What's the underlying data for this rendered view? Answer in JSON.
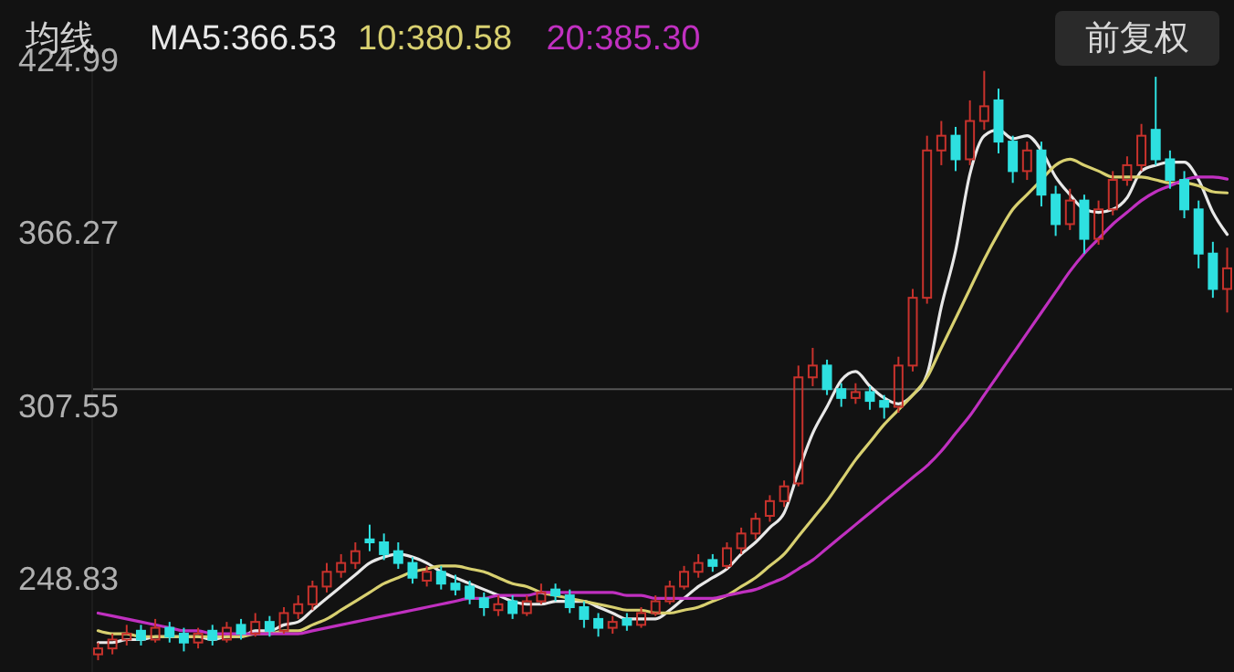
{
  "chart_data": {
    "type": "candlestick",
    "title": "均线",
    "legend": "top left",
    "ylim": [
      218,
      424.99
    ],
    "yticks": [
      248.83,
      307.55,
      366.27,
      424.99
    ],
    "categories": [
      null,
      null,
      null,
      null,
      null,
      null,
      null,
      null,
      null,
      null,
      null,
      null,
      null,
      null,
      null,
      null,
      null,
      null,
      null,
      null,
      null,
      null,
      null,
      null,
      null,
      null,
      null,
      null,
      null,
      null,
      null,
      null,
      null,
      null,
      null,
      null,
      null,
      null,
      null,
      null,
      null,
      null,
      null,
      null,
      null,
      null,
      null,
      null,
      null,
      null,
      null,
      null,
      null,
      null,
      null,
      null,
      null,
      null,
      null,
      null,
      null,
      null,
      null,
      null,
      null,
      null,
      null,
      null,
      null,
      null,
      null,
      null,
      null,
      null,
      null,
      null,
      null,
      null,
      null,
      null
    ],
    "ohlc": [
      [
        224,
        228,
        222,
        226
      ],
      [
        226,
        231,
        224,
        229
      ],
      [
        229,
        234,
        227,
        231
      ],
      [
        232,
        234,
        227,
        229
      ],
      [
        229,
        236,
        228,
        233
      ],
      [
        233,
        235,
        228,
        230
      ],
      [
        231,
        233,
        225,
        228
      ],
      [
        228,
        233,
        226,
        231
      ],
      [
        232,
        234,
        227,
        229
      ],
      [
        229,
        235,
        228,
        233
      ],
      [
        234,
        236,
        229,
        231
      ],
      [
        231,
        238,
        230,
        235
      ],
      [
        235,
        237,
        230,
        232
      ],
      [
        232,
        240,
        231,
        238
      ],
      [
        238,
        244,
        236,
        241
      ],
      [
        241,
        249,
        239,
        247
      ],
      [
        247,
        255,
        245,
        252
      ],
      [
        252,
        258,
        250,
        255
      ],
      [
        255,
        262,
        253,
        259
      ],
      [
        263,
        268,
        259,
        262
      ],
      [
        262,
        265,
        256,
        258
      ],
      [
        259,
        262,
        253,
        255
      ],
      [
        255,
        257,
        248,
        250
      ],
      [
        249,
        254,
        247,
        252
      ],
      [
        252,
        254,
        246,
        248
      ],
      [
        248,
        251,
        244,
        246
      ],
      [
        247,
        249,
        241,
        243
      ],
      [
        243,
        245,
        237,
        240
      ],
      [
        239,
        244,
        237,
        241
      ],
      [
        242,
        244,
        236,
        238
      ],
      [
        238,
        244,
        237,
        242
      ],
      [
        242,
        248,
        241,
        245
      ],
      [
        246,
        248,
        242,
        244
      ],
      [
        244,
        246,
        238,
        240
      ],
      [
        240,
        242,
        233,
        236
      ],
      [
        236,
        238,
        230,
        233
      ],
      [
        233,
        237,
        231,
        235
      ],
      [
        236,
        238,
        232,
        234
      ],
      [
        234,
        240,
        233,
        238
      ],
      [
        238,
        244,
        237,
        242
      ],
      [
        242,
        249,
        241,
        247
      ],
      [
        247,
        254,
        246,
        252
      ],
      [
        252,
        258,
        250,
        255
      ],
      [
        256,
        258,
        252,
        254
      ],
      [
        254,
        262,
        253,
        260
      ],
      [
        260,
        267,
        258,
        265
      ],
      [
        265,
        272,
        263,
        270
      ],
      [
        271,
        278,
        269,
        276
      ],
      [
        276,
        283,
        274,
        281
      ],
      [
        282,
        322,
        281,
        318
      ],
      [
        318,
        328,
        315,
        322
      ],
      [
        322,
        324,
        312,
        314
      ],
      [
        314,
        316,
        308,
        311
      ],
      [
        311,
        316,
        309,
        313
      ],
      [
        313,
        315,
        307,
        310
      ],
      [
        310,
        312,
        304,
        308
      ],
      [
        308,
        325,
        306,
        322
      ],
      [
        322,
        348,
        320,
        345
      ],
      [
        345,
        400,
        343,
        395
      ],
      [
        395,
        405,
        390,
        400
      ],
      [
        400,
        403,
        388,
        392
      ],
      [
        392,
        412,
        390,
        405
      ],
      [
        405,
        422,
        402,
        410
      ],
      [
        412,
        416,
        394,
        398
      ],
      [
        398,
        400,
        384,
        388
      ],
      [
        388,
        398,
        385,
        395
      ],
      [
        395,
        398,
        376,
        380
      ],
      [
        380,
        383,
        366,
        370
      ],
      [
        370,
        382,
        368,
        378
      ],
      [
        378,
        380,
        360,
        365
      ],
      [
        365,
        378,
        363,
        375
      ],
      [
        375,
        388,
        373,
        385
      ],
      [
        385,
        393,
        383,
        390
      ],
      [
        390,
        404,
        388,
        400
      ],
      [
        402,
        420,
        390,
        392
      ],
      [
        392,
        395,
        382,
        385
      ],
      [
        385,
        388,
        372,
        375
      ],
      [
        375,
        378,
        355,
        360
      ],
      [
        360,
        364,
        345,
        348
      ],
      [
        348,
        362,
        340,
        355
      ]
    ],
    "series": [
      {
        "name": "MA5:366.53",
        "type": "line",
        "color": "#e8e8e8",
        "values": [
          228,
          228,
          229,
          229,
          230,
          230,
          230,
          230,
          229,
          230,
          230,
          232,
          232,
          234,
          235,
          239,
          243,
          247,
          251,
          255,
          257,
          258,
          257,
          255,
          252,
          250,
          248,
          246,
          244,
          242,
          241,
          241,
          242,
          242,
          242,
          240,
          238,
          236,
          236,
          236,
          239,
          243,
          247,
          250,
          253,
          258,
          262,
          267,
          272,
          286,
          299,
          308,
          317,
          320,
          315,
          311,
          309,
          312,
          319,
          342,
          361,
          387,
          400,
          402,
          399,
          400,
          395,
          386,
          380,
          375,
          374,
          375,
          379,
          388,
          390,
          391,
          391,
          385,
          374,
          366.5
        ]
      },
      {
        "name": "10:380.58",
        "type": "line",
        "color": "#d8d070",
        "values": [
          232,
          231,
          231,
          230,
          230,
          230,
          230,
          230,
          230,
          230,
          230,
          231,
          231,
          232,
          232,
          234,
          236,
          239,
          242,
          245,
          248,
          250,
          252,
          253,
          254,
          254,
          253,
          252,
          250,
          248,
          247,
          245,
          244,
          243,
          242,
          241,
          240,
          239,
          239,
          238,
          238,
          239,
          240,
          242,
          244,
          247,
          250,
          254,
          258,
          264,
          270,
          276,
          283,
          290,
          296,
          302,
          307,
          312,
          318,
          328,
          338,
          348,
          358,
          367,
          375,
          380,
          385,
          390,
          392,
          390,
          388,
          386,
          386,
          386,
          385,
          384,
          384,
          383,
          381,
          380.6
        ]
      },
      {
        "name": "20:385.30",
        "type": "line",
        "color": "#c030c0",
        "values": [
          238,
          237,
          236,
          235,
          234,
          233,
          232,
          232,
          231,
          231,
          231,
          231,
          231,
          231,
          231,
          232,
          233,
          234,
          235,
          236,
          237,
          238,
          239,
          240,
          241,
          242,
          243,
          243,
          244,
          244,
          244,
          245,
          245,
          245,
          245,
          245,
          245,
          244,
          244,
          243,
          243,
          243,
          243,
          243,
          244,
          245,
          246,
          248,
          250,
          253,
          256,
          260,
          264,
          268,
          272,
          276,
          280,
          284,
          288,
          293,
          299,
          305,
          312,
          319,
          326,
          333,
          340,
          347,
          354,
          360,
          365,
          370,
          374,
          378,
          381,
          383,
          385,
          386,
          386,
          385.3
        ]
      }
    ],
    "ref_lines": [
      {
        "axis": "y",
        "value": 314,
        "color": "#555555"
      }
    ],
    "annotations": [
      "前复权"
    ]
  }
}
